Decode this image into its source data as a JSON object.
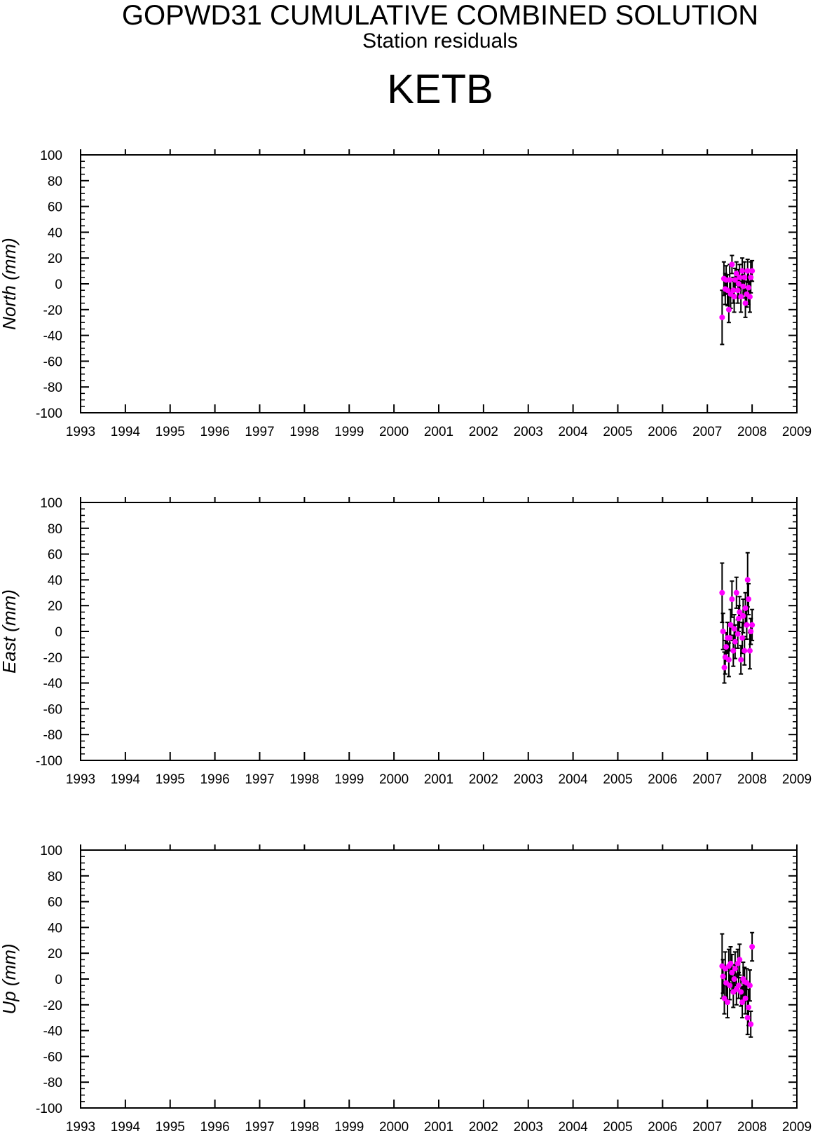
{
  "header": {
    "title": "GOPWD31 CUMULATIVE COMBINED SOLUTION",
    "subtitle": "Station residuals",
    "station": "KETB"
  },
  "colors": {
    "point": "#ff00ff",
    "errorbar": "#000000",
    "axis": "#000000"
  },
  "chart_data": [
    {
      "type": "scatter",
      "ylabel": "North (mm)",
      "xlim": [
        1993,
        2009
      ],
      "ylim": [
        -100,
        100
      ],
      "x_ticks": [
        "1993",
        "1994",
        "1995",
        "1996",
        "1997",
        "1998",
        "1999",
        "2000",
        "2001",
        "2002",
        "2003",
        "2004",
        "2005",
        "2006",
        "2007",
        "2008",
        "2009"
      ],
      "y_ticks": [
        "100",
        "80",
        "60",
        "40",
        "20",
        "0",
        "-20",
        "-40",
        "-60",
        "-80",
        "-100"
      ],
      "series": [
        {
          "x": [
            2007.33,
            2007.37,
            2007.4,
            2007.42,
            2007.45,
            2007.48,
            2007.5,
            2007.52,
            2007.55,
            2007.58,
            2007.6,
            2007.62,
            2007.65,
            2007.68,
            2007.7,
            2007.72,
            2007.75,
            2007.78,
            2007.8,
            2007.83,
            2007.85,
            2007.88,
            2007.9,
            2007.92,
            2007.95,
            2007.97,
            2008.0
          ],
          "y": [
            -26,
            4,
            -4,
            3,
            -5,
            -20,
            3,
            -8,
            15,
            -5,
            -10,
            3,
            8,
            -5,
            0,
            5,
            -10,
            10,
            -2,
            5,
            -15,
            -8,
            10,
            -3,
            -10,
            5,
            10
          ],
          "err": [
            21,
            13,
            12,
            11,
            12,
            10,
            12,
            11,
            7,
            10,
            12,
            9,
            9,
            10,
            11,
            10,
            12,
            10,
            9,
            12,
            11,
            10,
            9,
            13,
            12,
            12,
            8
          ]
        }
      ]
    },
    {
      "type": "scatter",
      "ylabel": "East (mm)",
      "xlim": [
        1993,
        2009
      ],
      "ylim": [
        -100,
        100
      ],
      "x_ticks": [
        "1993",
        "1994",
        "1995",
        "1996",
        "1997",
        "1998",
        "1999",
        "2000",
        "2001",
        "2002",
        "2003",
        "2004",
        "2005",
        "2006",
        "2007",
        "2008",
        "2009"
      ],
      "y_ticks": [
        "100",
        "80",
        "60",
        "40",
        "20",
        "0",
        "-20",
        "-40",
        "-60",
        "-80",
        "-100"
      ],
      "series": [
        {
          "x": [
            2007.33,
            2007.35,
            2007.38,
            2007.4,
            2007.42,
            2007.45,
            2007.48,
            2007.5,
            2007.52,
            2007.55,
            2007.58,
            2007.6,
            2007.62,
            2007.65,
            2007.68,
            2007.7,
            2007.72,
            2007.75,
            2007.78,
            2007.8,
            2007.83,
            2007.85,
            2007.88,
            2007.9,
            2007.92,
            2007.95,
            2007.97,
            2008.0
          ],
          "y": [
            30,
            0,
            -28,
            -20,
            -12,
            -5,
            -22,
            -5,
            5,
            25,
            -15,
            2,
            -8,
            30,
            -2,
            10,
            15,
            -22,
            -5,
            12,
            -15,
            18,
            5,
            40,
            25,
            -15,
            0,
            5
          ],
          "err": [
            23,
            14,
            12,
            13,
            11,
            12,
            13,
            10,
            12,
            14,
            12,
            11,
            13,
            12,
            11,
            10,
            12,
            11,
            12,
            13,
            11,
            12,
            11,
            21,
            12,
            14,
            10,
            12
          ]
        }
      ]
    },
    {
      "type": "scatter",
      "ylabel": "Up (mm)",
      "xlim": [
        1993,
        2009
      ],
      "ylim": [
        -100,
        100
      ],
      "x_ticks": [
        "1993",
        "1994",
        "1995",
        "1996",
        "1997",
        "1998",
        "1999",
        "2000",
        "2001",
        "2002",
        "2003",
        "2004",
        "2005",
        "2006",
        "2007",
        "2008",
        "2009"
      ],
      "y_ticks": [
        "100",
        "80",
        "60",
        "40",
        "20",
        "0",
        "-20",
        "-40",
        "-60",
        "-80",
        "-100"
      ],
      "series": [
        {
          "x": [
            2007.33,
            2007.35,
            2007.38,
            2007.4,
            2007.42,
            2007.45,
            2007.48,
            2007.5,
            2007.52,
            2007.55,
            2007.58,
            2007.6,
            2007.62,
            2007.65,
            2007.68,
            2007.7,
            2007.72,
            2007.75,
            2007.78,
            2007.8,
            2007.83,
            2007.85,
            2007.88,
            2007.9,
            2007.92,
            2007.95,
            2007.97,
            2008.0
          ],
          "y": [
            10,
            2,
            -15,
            8,
            -3,
            -18,
            10,
            -5,
            12,
            5,
            -10,
            0,
            8,
            -8,
            12,
            -5,
            15,
            -10,
            -18,
            0,
            -2,
            -15,
            -3,
            -30,
            -22,
            -5,
            -35,
            25
          ],
          "err": [
            25,
            13,
            12,
            13,
            11,
            12,
            13,
            11,
            13,
            14,
            12,
            11,
            13,
            12,
            11,
            10,
            12,
            11,
            12,
            13,
            11,
            12,
            11,
            13,
            14,
            12,
            10,
            11
          ]
        }
      ]
    }
  ]
}
